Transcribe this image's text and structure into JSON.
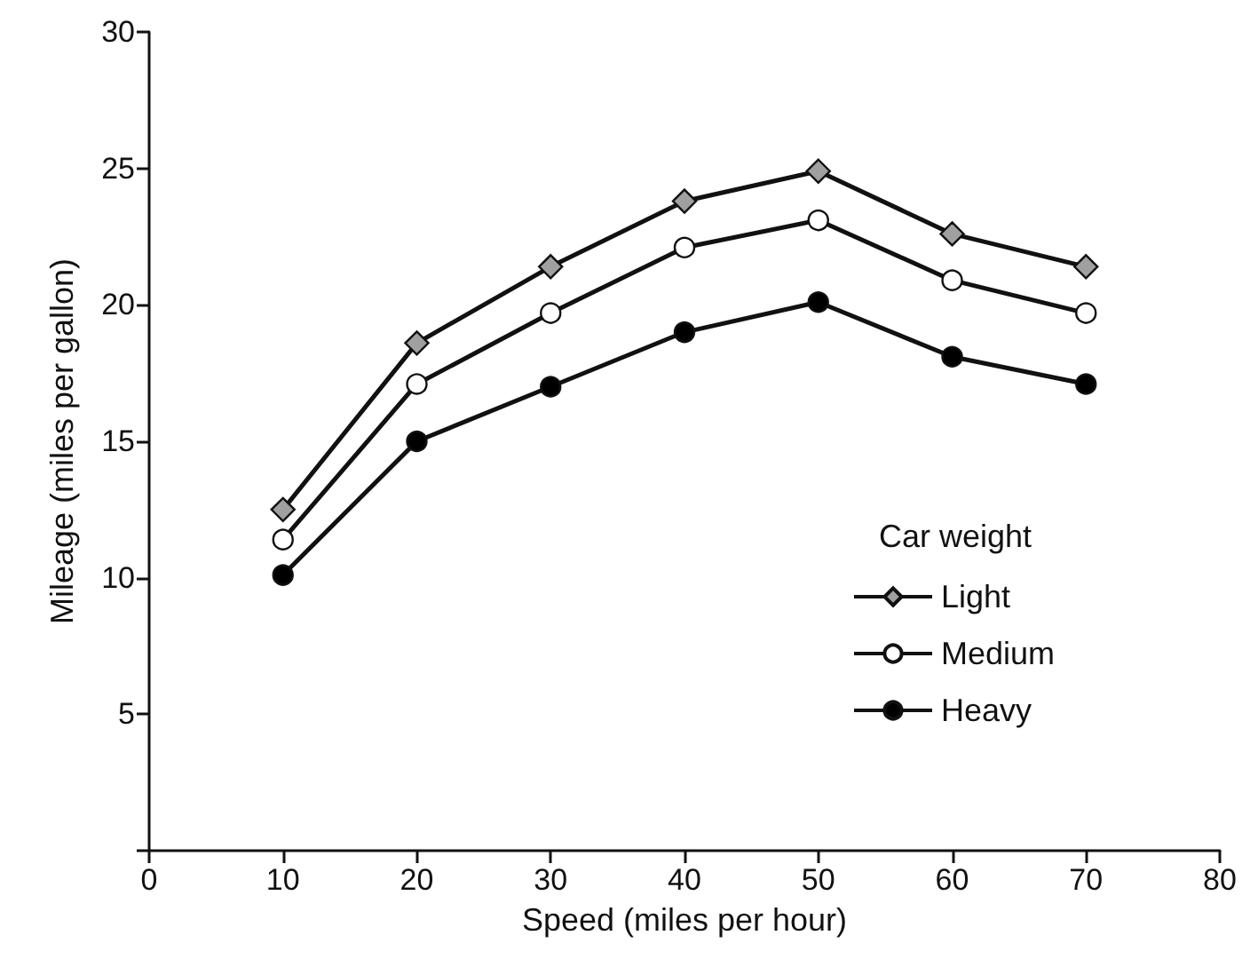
{
  "chart_data": {
    "type": "line",
    "xlabel": "Speed (miles per hour)",
    "ylabel": "Mileage (miles per gallon)",
    "legend_title": "Car weight",
    "x": [
      10,
      20,
      30,
      40,
      50,
      60,
      70
    ],
    "series": [
      {
        "name": "Light",
        "color": "#a0a0a0",
        "marker": "diamond",
        "values": [
          12.5,
          18.6,
          21.4,
          23.8,
          24.9,
          22.6,
          21.4
        ]
      },
      {
        "name": "Medium",
        "color": "#ffffff",
        "marker": "circle",
        "values": [
          11.4,
          17.1,
          19.7,
          22.1,
          23.1,
          20.9,
          19.7
        ]
      },
      {
        "name": "Heavy",
        "color": "#000000",
        "marker": "circle",
        "values": [
          10.1,
          15.0,
          17.0,
          19.0,
          20.1,
          18.1,
          17.1
        ]
      }
    ],
    "xlim": [
      0,
      80
    ],
    "xticks": [
      0,
      10,
      20,
      30,
      40,
      50,
      60,
      70,
      80
    ],
    "ylim": [
      0,
      30
    ],
    "yticks": [
      {
        "value": 0,
        "label": null
      },
      5,
      10,
      15,
      20,
      25,
      30
    ],
    "grid": false,
    "legend": "right",
    "line_style": "solid"
  }
}
